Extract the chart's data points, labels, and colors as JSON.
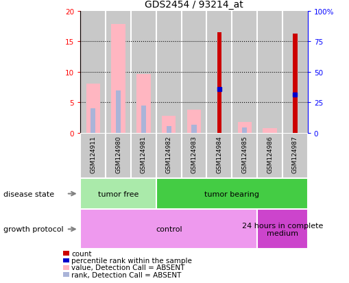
{
  "title": "GDS2454 / 93214_at",
  "samples": [
    "GSM124911",
    "GSM124980",
    "GSM124981",
    "GSM124982",
    "GSM124983",
    "GSM124984",
    "GSM124985",
    "GSM124986",
    "GSM124987"
  ],
  "value_absent": [
    8.0,
    17.8,
    9.6,
    2.8,
    3.8,
    0,
    1.8,
    0.7,
    0
  ],
  "rank_absent": [
    4.0,
    6.9,
    4.5,
    1.1,
    1.3,
    0,
    0.9,
    0,
    0
  ],
  "count_red": [
    0,
    0,
    0,
    0,
    0,
    16.5,
    0,
    0,
    16.2
  ],
  "percentile_rank": [
    0,
    0,
    0,
    0,
    0,
    7.1,
    0,
    0,
    6.3
  ],
  "ylim_left": [
    0,
    20
  ],
  "ylim_right": [
    0,
    100
  ],
  "yticks_left": [
    0,
    5,
    10,
    15,
    20
  ],
  "yticks_right": [
    0,
    25,
    50,
    75,
    100
  ],
  "ytick_labels_right": [
    "0",
    "25",
    "50",
    "75",
    "100%"
  ],
  "disease_state": [
    {
      "label": "tumor free",
      "start": 0,
      "end": 3,
      "color": "#aaeaaa"
    },
    {
      "label": "tumor bearing",
      "start": 3,
      "end": 9,
      "color": "#44cc44"
    }
  ],
  "growth_protocol": [
    {
      "label": "control",
      "start": 0,
      "end": 7,
      "color": "#ee99ee"
    },
    {
      "label": "24 hours in complete\nmedium",
      "start": 7,
      "end": 9,
      "color": "#cc44cc"
    }
  ],
  "color_value_absent": "#ffb6c1",
  "color_rank_absent": "#aab4d8",
  "color_count": "#cc0000",
  "color_percentile": "#0000cc",
  "color_bg_sample": "#c8c8c8",
  "legend_items": [
    {
      "label": "count",
      "color": "#cc0000"
    },
    {
      "label": "percentile rank within the sample",
      "color": "#0000cc"
    },
    {
      "label": "value, Detection Call = ABSENT",
      "color": "#ffb6c1"
    },
    {
      "label": "rank, Detection Call = ABSENT",
      "color": "#aab4d8"
    }
  ]
}
